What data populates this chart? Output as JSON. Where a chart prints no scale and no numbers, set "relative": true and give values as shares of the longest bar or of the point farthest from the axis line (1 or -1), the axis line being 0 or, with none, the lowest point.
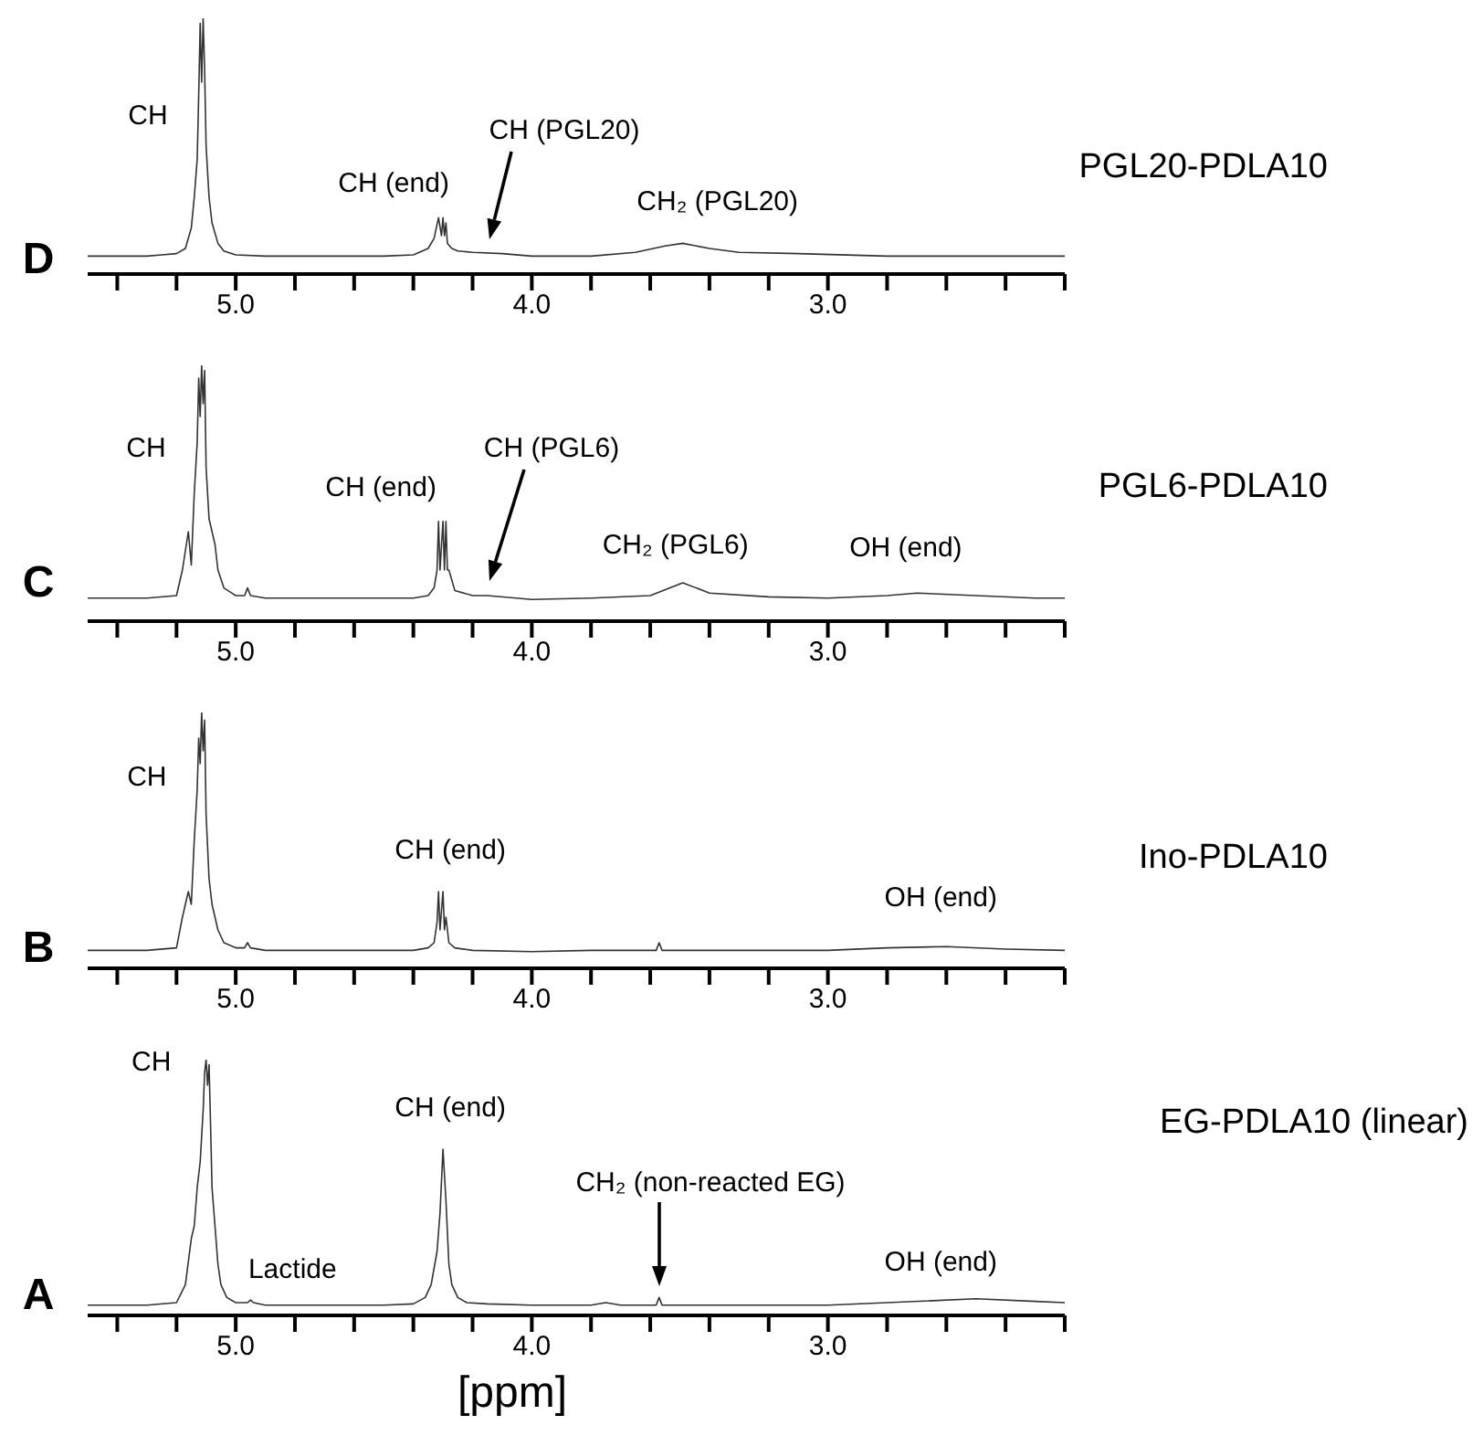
{
  "chart_data": [
    {
      "type": "line",
      "relative": true,
      "xlim": [
        5.5,
        2.2
      ],
      "xticks": [
        {
          "value": 5.4,
          "label": null
        },
        {
          "value": 5.2,
          "label": null
        },
        {
          "value": 5.0,
          "label": "5.0"
        },
        {
          "value": 4.8,
          "label": null
        },
        {
          "value": 4.6,
          "label": null
        },
        {
          "value": 4.4,
          "label": null
        },
        {
          "value": 4.2,
          "label": null
        },
        {
          "value": 4.0,
          "label": "4.0"
        },
        {
          "value": 3.8,
          "label": null
        },
        {
          "value": 3.6,
          "label": null
        },
        {
          "value": 3.4,
          "label": null
        },
        {
          "value": 3.2,
          "label": null
        },
        {
          "value": 3.0,
          "label": "3.0"
        },
        {
          "value": 2.8,
          "label": null
        },
        {
          "value": 2.6,
          "label": null
        },
        {
          "value": 2.4,
          "label": null
        },
        {
          "value": 2.2,
          "label": null
        }
      ],
      "x": [
        5.5,
        5.3,
        5.25,
        5.2,
        5.17,
        5.15,
        5.14,
        5.13,
        5.125,
        5.12,
        5.115,
        5.11,
        5.105,
        5.1,
        5.09,
        5.08,
        5.06,
        5.04,
        5.0,
        4.9,
        4.5,
        4.4,
        4.35,
        4.33,
        4.315,
        4.305,
        4.3,
        4.295,
        4.29,
        4.285,
        4.27,
        4.25,
        4.2,
        4.1,
        4.0,
        3.8,
        3.65,
        3.55,
        3.49,
        3.4,
        3.3,
        3.1,
        2.8,
        2.5,
        2.2
      ],
      "series": [
        {
          "name": "PGL20-PDLA10",
          "color": "#333333",
          "values": [
            0.07,
            0.07,
            0.075,
            0.08,
            0.1,
            0.18,
            0.3,
            0.45,
            0.7,
            0.98,
            0.75,
            1.0,
            0.8,
            0.5,
            0.3,
            0.2,
            0.12,
            0.09,
            0.075,
            0.07,
            0.07,
            0.075,
            0.1,
            0.14,
            0.22,
            0.15,
            0.22,
            0.15,
            0.2,
            0.12,
            0.1,
            0.09,
            0.085,
            0.08,
            0.07,
            0.07,
            0.085,
            0.11,
            0.12,
            0.1,
            0.085,
            0.08,
            0.07,
            0.07,
            0.07
          ]
        }
      ],
      "annotations": [
        "D",
        "CH",
        {
          "text": "CH (end)",
          "x": 4.3,
          "y": 0.22
        },
        "CH (PGL20)",
        {
          "text": "CH₂ (PGL20)",
          "x": 3.49,
          "y": 0.12
        }
      ]
    },
    {
      "type": "line",
      "relative": true,
      "xlim": [
        5.5,
        2.2
      ],
      "xticks": [
        {
          "value": 5.4,
          "label": null
        },
        {
          "value": 5.2,
          "label": null
        },
        {
          "value": 5.0,
          "label": "5.0"
        },
        {
          "value": 4.8,
          "label": null
        },
        {
          "value": 4.6,
          "label": null
        },
        {
          "value": 4.4,
          "label": null
        },
        {
          "value": 4.2,
          "label": null
        },
        {
          "value": 4.0,
          "label": "4.0"
        },
        {
          "value": 3.8,
          "label": null
        },
        {
          "value": 3.6,
          "label": null
        },
        {
          "value": 3.4,
          "label": null
        },
        {
          "value": 3.2,
          "label": null
        },
        {
          "value": 3.0,
          "label": "3.0"
        },
        {
          "value": 2.8,
          "label": null
        },
        {
          "value": 2.6,
          "label": null
        },
        {
          "value": 2.4,
          "label": null
        },
        {
          "value": 2.2,
          "label": null
        }
      ],
      "x": [
        5.5,
        5.3,
        5.2,
        5.18,
        5.16,
        5.15,
        5.14,
        5.13,
        5.125,
        5.12,
        5.115,
        5.11,
        5.105,
        5.1,
        5.09,
        5.07,
        5.06,
        5.04,
        5.0,
        4.97,
        4.96,
        4.95,
        4.9,
        4.5,
        4.4,
        4.35,
        4.33,
        4.32,
        4.315,
        4.31,
        4.3,
        4.295,
        4.29,
        4.285,
        4.28,
        4.26,
        4.2,
        4.15,
        4.0,
        3.8,
        3.6,
        3.49,
        3.4,
        3.2,
        3.0,
        2.8,
        2.7,
        2.5,
        2.3,
        2.2
      ],
      "series": [
        {
          "name": "PGL6-PDLA10",
          "color": "#333333",
          "values": [
            0.09,
            0.09,
            0.1,
            0.2,
            0.35,
            0.22,
            0.5,
            0.7,
            0.95,
            0.8,
            1.0,
            0.85,
            0.98,
            0.6,
            0.4,
            0.3,
            0.2,
            0.13,
            0.1,
            0.1,
            0.13,
            0.1,
            0.09,
            0.09,
            0.09,
            0.1,
            0.13,
            0.2,
            0.39,
            0.2,
            0.39,
            0.2,
            0.39,
            0.2,
            0.2,
            0.12,
            0.1,
            0.1,
            0.085,
            0.09,
            0.1,
            0.15,
            0.11,
            0.095,
            0.09,
            0.1,
            0.11,
            0.1,
            0.09,
            0.09
          ]
        }
      ],
      "annotations": [
        "C",
        "CH",
        {
          "text": "CH (end)",
          "x": 4.3,
          "y": 0.39
        },
        "CH (PGL6)",
        {
          "text": "CH₂ (PGL6)",
          "x": 3.49,
          "y": 0.15
        },
        {
          "text": "OH (end)",
          "x": 2.7,
          "y": 0.11
        }
      ]
    },
    {
      "type": "line",
      "relative": true,
      "xlim": [
        5.5,
        2.2
      ],
      "xticks": [
        {
          "value": 5.4,
          "label": null
        },
        {
          "value": 5.2,
          "label": null
        },
        {
          "value": 5.0,
          "label": "5.0"
        },
        {
          "value": 4.8,
          "label": null
        },
        {
          "value": 4.6,
          "label": null
        },
        {
          "value": 4.4,
          "label": null
        },
        {
          "value": 4.2,
          "label": null
        },
        {
          "value": 4.0,
          "label": "4.0"
        },
        {
          "value": 3.8,
          "label": null
        },
        {
          "value": 3.6,
          "label": null
        },
        {
          "value": 3.4,
          "label": null
        },
        {
          "value": 3.2,
          "label": null
        },
        {
          "value": 3.0,
          "label": "3.0"
        },
        {
          "value": 2.8,
          "label": null
        },
        {
          "value": 2.6,
          "label": null
        },
        {
          "value": 2.4,
          "label": null
        },
        {
          "value": 2.2,
          "label": null
        }
      ],
      "x": [
        5.5,
        5.3,
        5.2,
        5.18,
        5.16,
        5.15,
        5.14,
        5.13,
        5.125,
        5.12,
        5.115,
        5.11,
        5.105,
        5.1,
        5.09,
        5.08,
        5.06,
        5.04,
        5.0,
        4.97,
        4.96,
        4.95,
        4.9,
        4.5,
        4.4,
        4.35,
        4.33,
        4.32,
        4.315,
        4.31,
        4.3,
        4.295,
        4.29,
        4.28,
        4.26,
        4.2,
        4.0,
        3.8,
        3.58,
        3.57,
        3.56,
        3.4,
        3.0,
        2.8,
        2.6,
        2.4,
        2.2
      ],
      "series": [
        {
          "name": "Ino-PDLA10",
          "color": "#333333",
          "values": [
            0.07,
            0.07,
            0.08,
            0.2,
            0.3,
            0.25,
            0.5,
            0.7,
            0.9,
            0.8,
            1.0,
            0.85,
            0.97,
            0.6,
            0.35,
            0.25,
            0.15,
            0.1,
            0.08,
            0.08,
            0.1,
            0.08,
            0.07,
            0.07,
            0.07,
            0.08,
            0.1,
            0.18,
            0.3,
            0.15,
            0.3,
            0.15,
            0.2,
            0.1,
            0.08,
            0.07,
            0.065,
            0.07,
            0.07,
            0.1,
            0.07,
            0.07,
            0.07,
            0.08,
            0.085,
            0.075,
            0.07
          ]
        }
      ],
      "annotations": [
        "B",
        {
          "text": "CH",
          "x": 5.115,
          "y": 1.0
        },
        {
          "text": "CH (end)",
          "x": 4.3,
          "y": 0.3
        },
        {
          "text": "OH (end)",
          "x": 2.6,
          "y": 0.085
        }
      ]
    },
    {
      "type": "line",
      "xlabel": "[ppm]",
      "relative": true,
      "xlim": [
        5.5,
        2.2
      ],
      "xticks": [
        {
          "value": 5.4,
          "label": null
        },
        {
          "value": 5.2,
          "label": null
        },
        {
          "value": 5.0,
          "label": "5.0"
        },
        {
          "value": 4.8,
          "label": null
        },
        {
          "value": 4.6,
          "label": null
        },
        {
          "value": 4.4,
          "label": null
        },
        {
          "value": 4.2,
          "label": null
        },
        {
          "value": 4.0,
          "label": "4.0"
        },
        {
          "value": 3.8,
          "label": null
        },
        {
          "value": 3.6,
          "label": null
        },
        {
          "value": 3.4,
          "label": null
        },
        {
          "value": 3.2,
          "label": null
        },
        {
          "value": 3.0,
          "label": "3.0"
        },
        {
          "value": 2.8,
          "label": null
        },
        {
          "value": 2.6,
          "label": null
        },
        {
          "value": 2.4,
          "label": null
        },
        {
          "value": 2.2,
          "label": null
        }
      ],
      "x": [
        5.5,
        5.3,
        5.2,
        5.17,
        5.15,
        5.14,
        5.13,
        5.12,
        5.11,
        5.105,
        5.1,
        5.095,
        5.09,
        5.085,
        5.08,
        5.07,
        5.06,
        5.05,
        5.03,
        5.0,
        4.96,
        4.95,
        4.94,
        4.9,
        4.5,
        4.4,
        4.36,
        4.34,
        4.32,
        4.31,
        4.3,
        4.29,
        4.28,
        4.27,
        4.25,
        4.22,
        4.15,
        4.0,
        3.8,
        3.75,
        3.7,
        3.58,
        3.57,
        3.56,
        3.4,
        3.0,
        2.8,
        2.5,
        2.3,
        2.2
      ],
      "series": [
        {
          "name": "EG-PDLA10 (linear)",
          "color": "#333333",
          "values": [
            0.04,
            0.04,
            0.05,
            0.12,
            0.3,
            0.35,
            0.5,
            0.6,
            0.8,
            0.95,
            1.0,
            0.9,
            0.98,
            0.75,
            0.5,
            0.35,
            0.2,
            0.12,
            0.07,
            0.05,
            0.05,
            0.06,
            0.05,
            0.04,
            0.04,
            0.045,
            0.07,
            0.12,
            0.25,
            0.4,
            0.65,
            0.45,
            0.2,
            0.12,
            0.07,
            0.05,
            0.045,
            0.04,
            0.04,
            0.05,
            0.04,
            0.04,
            0.07,
            0.04,
            0.04,
            0.04,
            0.05,
            0.065,
            0.055,
            0.05
          ]
        }
      ],
      "annotations": [
        "A",
        {
          "text": "CH",
          "x": 5.1,
          "y": 1.0
        },
        {
          "text": "Lactide",
          "x": 4.95,
          "y": 0.06
        },
        {
          "text": "CH (end)",
          "x": 4.3,
          "y": 0.65
        },
        "CH₂ (non-reacted EG)",
        {
          "text": "OH (end)",
          "x": 2.6,
          "y": 0.06
        }
      ]
    }
  ]
}
